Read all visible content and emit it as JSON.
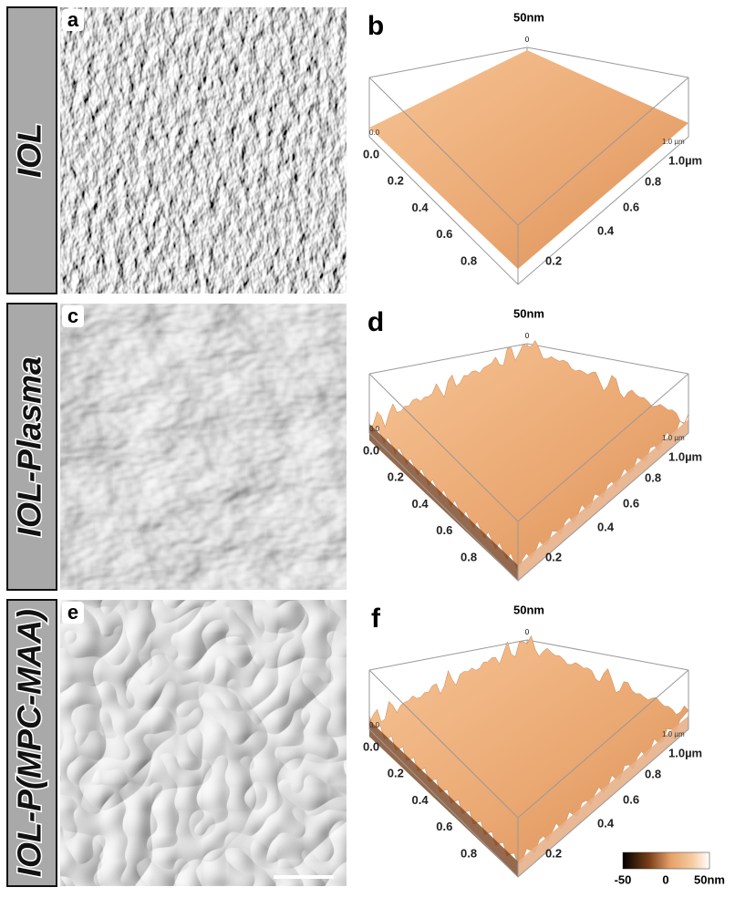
{
  "panels": [
    {
      "sample": "IOL",
      "image_letter": "a",
      "plot_letter": "b",
      "z_max": "50nm",
      "z_zero": "0",
      "corner_small_left": "0.0",
      "corner_small_right": "1.0 µm",
      "x_ticks": [
        "0.0",
        "0.2",
        "0.4",
        "0.6",
        "0.8"
      ],
      "y_ticks": [
        "1.0µm",
        "0.8",
        "0.6",
        "0.4",
        "0.2"
      ]
    },
    {
      "sample": "IOL-Plasma",
      "image_letter": "c",
      "plot_letter": "d",
      "z_max": "50nm",
      "z_zero": "0",
      "corner_small_left": "0.0",
      "corner_small_right": "1.0 µm",
      "x_ticks": [
        "0.0",
        "0.2",
        "0.4",
        "0.6",
        "0.8"
      ],
      "y_ticks": [
        "1.0µm",
        "0.8",
        "0.6",
        "0.4",
        "0.2"
      ]
    },
    {
      "sample": "IOL-P(MPC-MAA)",
      "image_letter": "e",
      "plot_letter": "f",
      "z_max": "50nm",
      "z_zero": "0",
      "corner_small_left": "0.0",
      "corner_small_right": "1.0 µm",
      "x_ticks": [
        "0.0",
        "0.2",
        "0.4",
        "0.6",
        "0.8"
      ],
      "y_ticks": [
        "1.0µm",
        "0.8",
        "0.6",
        "0.4",
        "0.2"
      ]
    }
  ],
  "colorbar": {
    "labels": [
      "-50",
      "0",
      "50nm"
    ]
  }
}
